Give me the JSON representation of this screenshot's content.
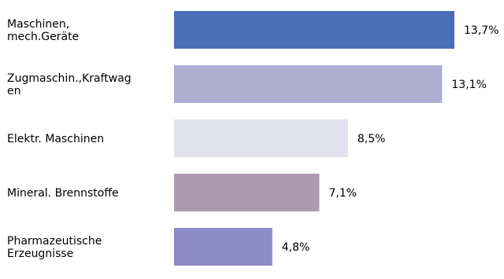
{
  "chart_data": {
    "type": "bar",
    "orientation": "horizontal",
    "categories": [
      [
        "Maschinen,",
        "mech.Geräte"
      ],
      [
        "Zugmaschin.,Kraftwag",
        "en"
      ],
      [
        "Elektr. Maschinen"
      ],
      [
        "Mineral. Brennstoffe"
      ],
      [
        "Pharmazeutische",
        "Erzeugnisse"
      ]
    ],
    "values": [
      13.7,
      13.1,
      8.5,
      7.1,
      4.8
    ],
    "value_labels": [
      "13,7%",
      "13,1%",
      "8,5%",
      "7,1%",
      "4,8%"
    ],
    "colors": [
      "#4A6DB8",
      "#AEACCF",
      "#E2E2EE",
      "#AD9AB1",
      "#8E8AC6"
    ],
    "xlim": [
      0,
      13.7
    ],
    "grid": false,
    "legend": "none"
  }
}
